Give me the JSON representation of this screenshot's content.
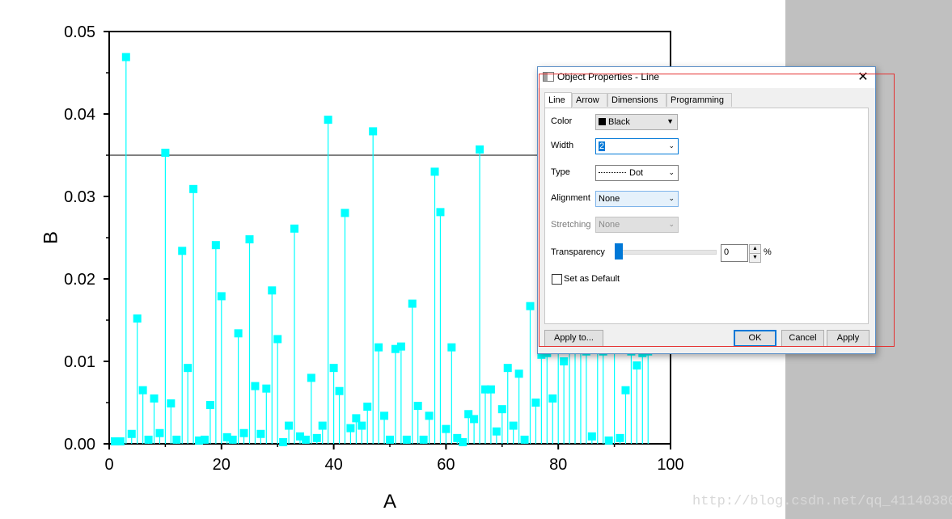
{
  "chart_data": {
    "type": "scatter",
    "style": "drop-lines with square markers",
    "xlabel": "A",
    "ylabel": "B",
    "xlim": [
      0,
      100
    ],
    "ylim": [
      0,
      0.05
    ],
    "x_ticks": [
      "0",
      "20",
      "40",
      "60",
      "80",
      "100"
    ],
    "y_ticks": [
      "0.00",
      "0.01",
      "0.02",
      "0.03",
      "0.04",
      "0.05"
    ],
    "reference_line_y": 0.035,
    "marker_color": "#00ffff",
    "x": [
      1,
      2,
      3,
      4,
      5,
      6,
      7,
      8,
      9,
      10,
      11,
      12,
      13,
      14,
      15,
      16,
      17,
      18,
      19,
      20,
      21,
      22,
      23,
      24,
      25,
      26,
      27,
      28,
      29,
      30,
      31,
      32,
      33,
      34,
      35,
      36,
      37,
      38,
      39,
      40,
      41,
      42,
      43,
      44,
      45,
      46,
      47,
      48,
      49,
      50,
      51,
      52,
      53,
      54,
      55,
      56,
      57,
      58,
      59,
      60,
      61,
      62,
      63,
      64,
      65,
      66,
      67,
      68,
      69,
      70,
      71,
      72,
      73,
      74,
      75,
      76,
      77,
      78,
      79,
      80,
      81,
      82,
      83,
      84,
      85,
      86,
      87,
      88,
      89,
      90,
      91,
      92,
      93,
      94,
      95,
      96
    ],
    "y": [
      0.0003,
      0.0003,
      0.0469,
      0.0012,
      0.0152,
      0.0065,
      0.0005,
      0.0055,
      0.0013,
      0.0353,
      0.0049,
      0.0005,
      0.0234,
      0.0092,
      0.0309,
      0.0004,
      0.0005,
      0.0047,
      0.0241,
      0.0179,
      0.0008,
      0.0005,
      0.0134,
      0.0013,
      0.0248,
      0.007,
      0.0012,
      0.0067,
      0.0186,
      0.0127,
      0.0002,
      0.0022,
      0.0261,
      0.0009,
      0.0005,
      0.008,
      0.0007,
      0.0022,
      0.0393,
      0.0092,
      0.0064,
      0.028,
      0.0019,
      0.0031,
      0.0022,
      0.0045,
      0.0379,
      0.0117,
      0.0034,
      0.0005,
      0.0115,
      0.0118,
      0.0005,
      0.017,
      0.0046,
      0.0005,
      0.0034,
      0.033,
      0.0281,
      0.0018,
      0.0117,
      0.0007,
      0.0002,
      0.0036,
      0.003,
      0.0357,
      0.0066,
      0.0066,
      0.0015,
      0.0042,
      0.0092,
      0.0022,
      0.0085,
      0.0005,
      0.0167,
      0.005,
      0.0108,
      0.011,
      0.0055,
      0.0128,
      0.01,
      0.0125,
      0.0115,
      0.012,
      0.0112,
      0.0009,
      0.0118,
      0.0112,
      0.0004,
      0.0115,
      0.0007,
      0.0065,
      0.0112,
      0.0095,
      0.011,
      0.0112
    ]
  },
  "watermark": "http://blog.csdn.net/qq_41140380",
  "dialog": {
    "title": "Object Properties - Line",
    "close_glyph": "✕",
    "tabs": [
      "Line",
      "Arrow",
      "Dimensions",
      "Programming"
    ],
    "fields": {
      "color_label": "Color",
      "color_value": "Black",
      "width_label": "Width",
      "width_value": "2",
      "type_label": "Type",
      "type_value": "Dot",
      "alignment_label": "Alignment",
      "alignment_value": "None",
      "stretching_label": "Stretching",
      "stretching_value": "None",
      "transparency_label": "Transparency",
      "transparency_value": "0",
      "transparency_unit": "%",
      "set_default_label": "Set as Default"
    },
    "buttons": {
      "apply_to": "Apply to...",
      "ok": "OK",
      "cancel": "Cancel",
      "apply": "Apply"
    }
  }
}
